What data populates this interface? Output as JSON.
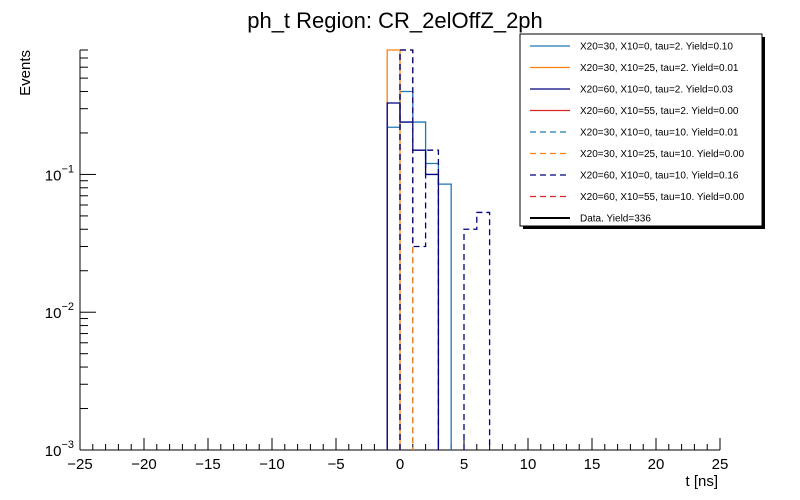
{
  "chart_data": {
    "type": "histogram",
    "title": "ph_t Region: CR_2elOffZ_2ph",
    "xlabel": "t [ns]",
    "ylabel": "Events",
    "xlim": [
      -25,
      25
    ],
    "ylim": [
      0.001,
      0.8
    ],
    "yscale": "log",
    "bin_width": 1,
    "grid": false,
    "legend_position": "top-right",
    "x_ticks": [
      -25,
      -20,
      -15,
      -10,
      -5,
      0,
      5,
      10,
      15,
      20,
      25
    ],
    "x_tick_labels": [
      "−25",
      "−20",
      "−15",
      "−10",
      "−5",
      "0",
      "5",
      "10",
      "15",
      "20",
      "25"
    ],
    "y_ticks": [
      0.001,
      0.01,
      0.1
    ],
    "y_tick_labels": [
      {
        "base": "10",
        "exp": "−3"
      },
      {
        "base": "10",
        "exp": "−2"
      },
      {
        "base": "10",
        "exp": "−1"
      }
    ],
    "series": [
      {
        "name": "X20=30, X10=0, tau=2. Yield=0.10",
        "color": "#1f77b4",
        "dashed": false,
        "bins": [
          [
            -1,
            0.22
          ],
          [
            0,
            0.4
          ],
          [
            1,
            0.24
          ],
          [
            2,
            0.12
          ],
          [
            3,
            0.085
          ]
        ]
      },
      {
        "name": "X20=30, X10=25, tau=2. Yield=0.01",
        "color": "#ff7f0e",
        "dashed": false,
        "bins": [
          [
            -1,
            0.8
          ]
        ]
      },
      {
        "name": "X20=60, X10=0, tau=2. Yield=0.03",
        "color": "#000080",
        "dashed": false,
        "bins": [
          [
            -1,
            0.33
          ],
          [
            0,
            0.24
          ],
          [
            1,
            0.15
          ],
          [
            2,
            0.1
          ]
        ]
      },
      {
        "name": "X20=60, X10=55, tau=2. Yield=0.00",
        "color": "#d62728",
        "dashed": false,
        "bins": []
      },
      {
        "name": "X20=30, X10=0, tau=10. Yield=0.01",
        "color": "#1f77b4",
        "dashed": true,
        "bins": [
          [
            0,
            0.8
          ]
        ]
      },
      {
        "name": "X20=30, X10=25, tau=10. Yield=0.00",
        "color": "#ff7f0e",
        "dashed": true,
        "bins": [
          [
            0,
            0.8
          ]
        ]
      },
      {
        "name": "X20=60, X10=0, tau=10. Yield=0.16",
        "color": "#000080",
        "dashed": true,
        "bins": [
          [
            0,
            0.8
          ],
          [
            1,
            0.03
          ],
          [
            2,
            0.15
          ],
          [
            5,
            0.04
          ],
          [
            6,
            0.053
          ]
        ]
      },
      {
        "name": "X20=60, X10=55, tau=10. Yield=0.00",
        "color": "#d62728",
        "dashed": true,
        "bins": []
      },
      {
        "name": "Data. Yield=336",
        "color": "#000000",
        "dashed": false,
        "thick": true,
        "bins": []
      }
    ]
  }
}
